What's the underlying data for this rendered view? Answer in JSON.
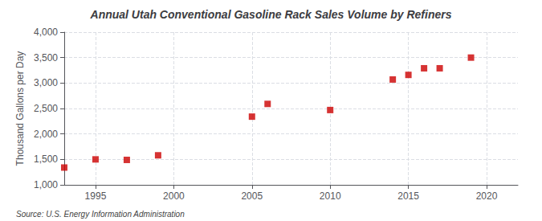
{
  "chart_data": {
    "type": "scatter",
    "title": "Annual Utah Conventional Gasoline Rack Sales Volume by Refiners",
    "ylabel": "Thousand Gallons per Day",
    "annotations": [
      "Source: U.S. Energy Information Administration"
    ],
    "x": [
      1993,
      1995,
      1997,
      1999,
      2005,
      2006,
      2010,
      2014,
      2015,
      2016,
      2017,
      2019
    ],
    "values": [
      1340,
      1500,
      1490,
      1580,
      2340,
      2590,
      2470,
      3070,
      3160,
      3290,
      3290,
      3500
    ],
    "color": "#cc0000",
    "marker": "square",
    "xlim": [
      1993,
      2022
    ],
    "ylim": [
      1000,
      4000
    ],
    "xticks": [
      1995,
      2000,
      2005,
      2010,
      2015,
      2020
    ],
    "yticks": [
      {
        "value": 1000,
        "label": "1,000"
      },
      {
        "value": 1500,
        "label": "1,500"
      },
      {
        "value": 2000,
        "label": "2,000"
      },
      {
        "value": 2500,
        "label": "2,500"
      },
      {
        "value": 3000,
        "label": "3,000"
      },
      {
        "value": 3500,
        "label": "3,500"
      },
      {
        "value": 4000,
        "label": "4,000"
      }
    ],
    "grid": true
  }
}
